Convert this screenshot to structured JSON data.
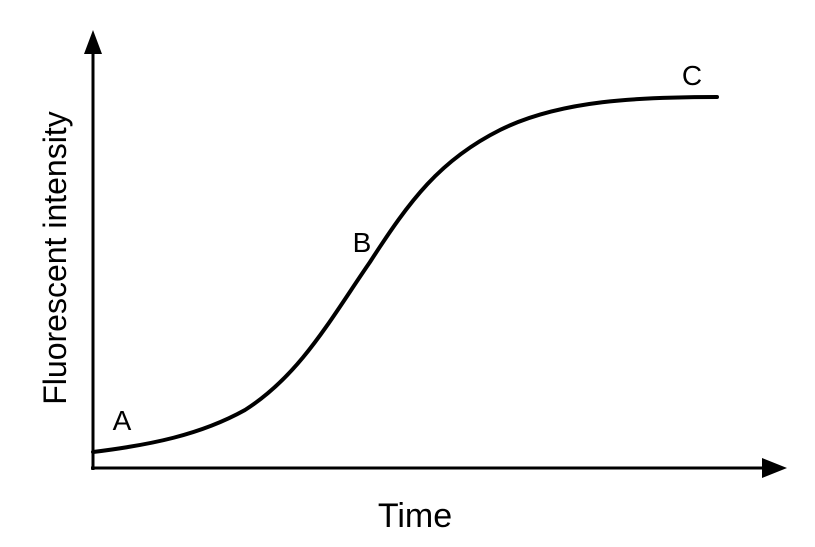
{
  "axes": {
    "x_label": "Time",
    "y_label": "Fluorescent intensity"
  },
  "points": [
    {
      "label": "A"
    },
    {
      "label": "B"
    },
    {
      "label": "C"
    }
  ]
}
